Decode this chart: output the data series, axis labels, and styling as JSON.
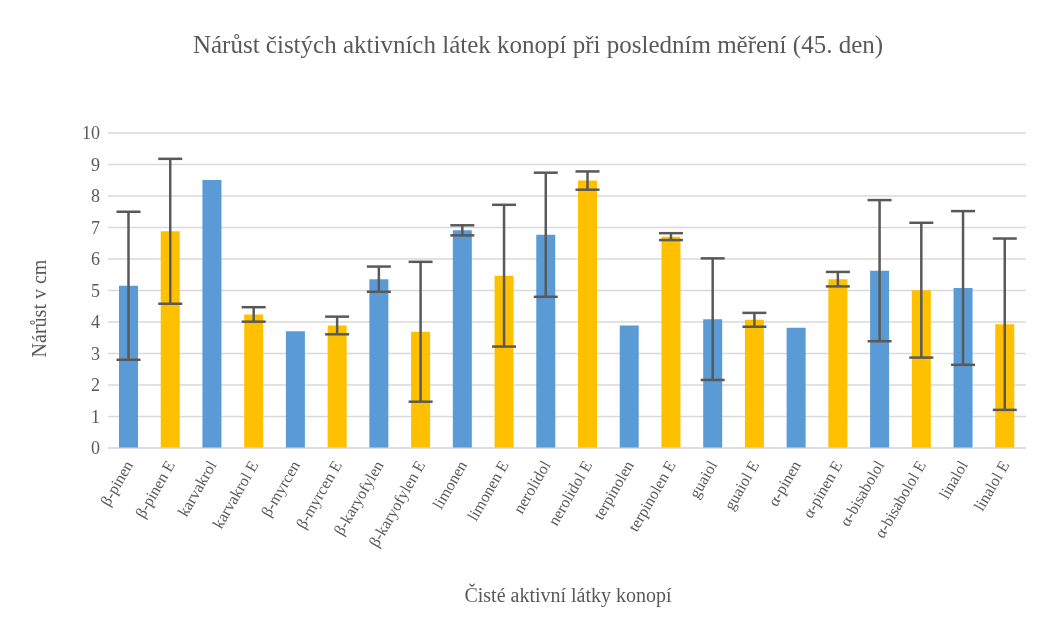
{
  "chart_data": {
    "type": "bar",
    "title": "Nárůst čistých aktivních látek konopí při posledním měření (45. den)",
    "xlabel": "Čisté aktivní látky konopí",
    "ylabel": "Nárůst v cm",
    "categories": [
      "β-pinen",
      "β-pinen E",
      "karvakrol",
      "karvakrol E",
      "β-myrcen",
      "β-myrcen E",
      "β-karyofylen",
      "β-karyofylen E",
      "limonen",
      "limonen E",
      "nerolidol",
      "nerolidol E",
      "terpinolen",
      "terpinolen E",
      "guaiol",
      "guaiol E",
      "α-pinen",
      "α-pinen E",
      "α-bisabolol",
      "α-bisabolol E",
      "linalol",
      "linalol E"
    ],
    "values": [
      5.15,
      6.88,
      8.51,
      4.24,
      3.71,
      3.89,
      5.36,
      3.69,
      6.91,
      5.47,
      6.77,
      8.49,
      3.89,
      6.71,
      4.09,
      4.07,
      3.82,
      5.36,
      5.63,
      5.01,
      5.08,
      3.93
    ],
    "errors": [
      2.35,
      2.3,
      0,
      0.23,
      0,
      0.28,
      0.4,
      2.22,
      0.16,
      2.25,
      1.97,
      0.29,
      0,
      0.11,
      1.93,
      0.22,
      0,
      0.23,
      2.24,
      2.14,
      2.44,
      2.72
    ],
    "colors": [
      "#5b9bd5",
      "#ffc000",
      "#5b9bd5",
      "#ffc000",
      "#5b9bd5",
      "#ffc000",
      "#5b9bd5",
      "#ffc000",
      "#5b9bd5",
      "#ffc000",
      "#5b9bd5",
      "#ffc000",
      "#5b9bd5",
      "#ffc000",
      "#5b9bd5",
      "#ffc000",
      "#5b9bd5",
      "#ffc000",
      "#5b9bd5",
      "#ffc000",
      "#5b9bd5",
      "#ffc000"
    ],
    "ylim": [
      0,
      10
    ],
    "yticks": [
      0,
      1,
      2,
      3,
      4,
      5,
      6,
      7,
      8,
      9,
      10
    ],
    "grid": "y",
    "legend": false
  }
}
